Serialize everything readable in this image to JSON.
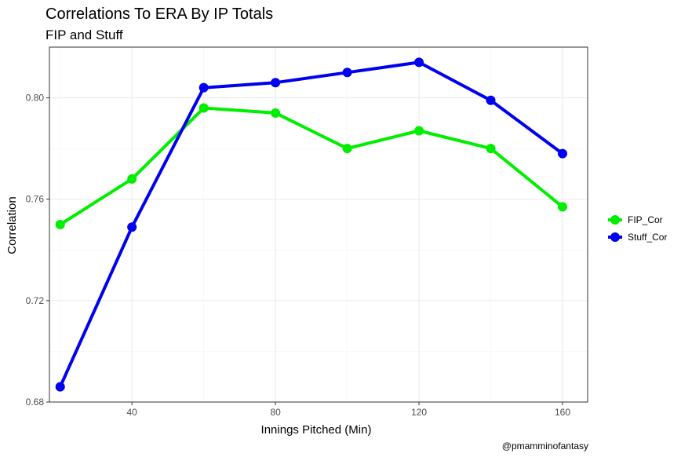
{
  "chart_data": {
    "type": "line",
    "title": "Correlations To ERA By IP Totals",
    "subtitle": "FIP and Stuff",
    "xlabel": "Innings Pitched (Min)",
    "ylabel": "Correlation",
    "caption": "@pmamminofantasy",
    "x": [
      20,
      40,
      60,
      80,
      100,
      120,
      140,
      160
    ],
    "series": [
      {
        "name": "FIP_Cor",
        "color": "#00ee00",
        "values": [
          0.75,
          0.768,
          0.796,
          0.794,
          0.78,
          0.787,
          0.78,
          0.757
        ]
      },
      {
        "name": "Stuff_Cor",
        "color": "#0000ee",
        "values": [
          0.686,
          0.749,
          0.804,
          0.806,
          0.81,
          0.814,
          0.799,
          0.778
        ]
      }
    ],
    "xlim": [
      17,
      167
    ],
    "ylim": [
      0.68,
      0.82
    ],
    "x_ticks": [
      40,
      80,
      120,
      160
    ],
    "x_tick_labels": [
      "40",
      "80",
      "120",
      "160"
    ],
    "y_ticks": [
      0.68,
      0.72,
      0.76,
      0.8
    ],
    "y_tick_labels": [
      "0.68",
      "0.72",
      "0.76",
      "0.80"
    ],
    "grid": true,
    "legend_position": "right"
  }
}
